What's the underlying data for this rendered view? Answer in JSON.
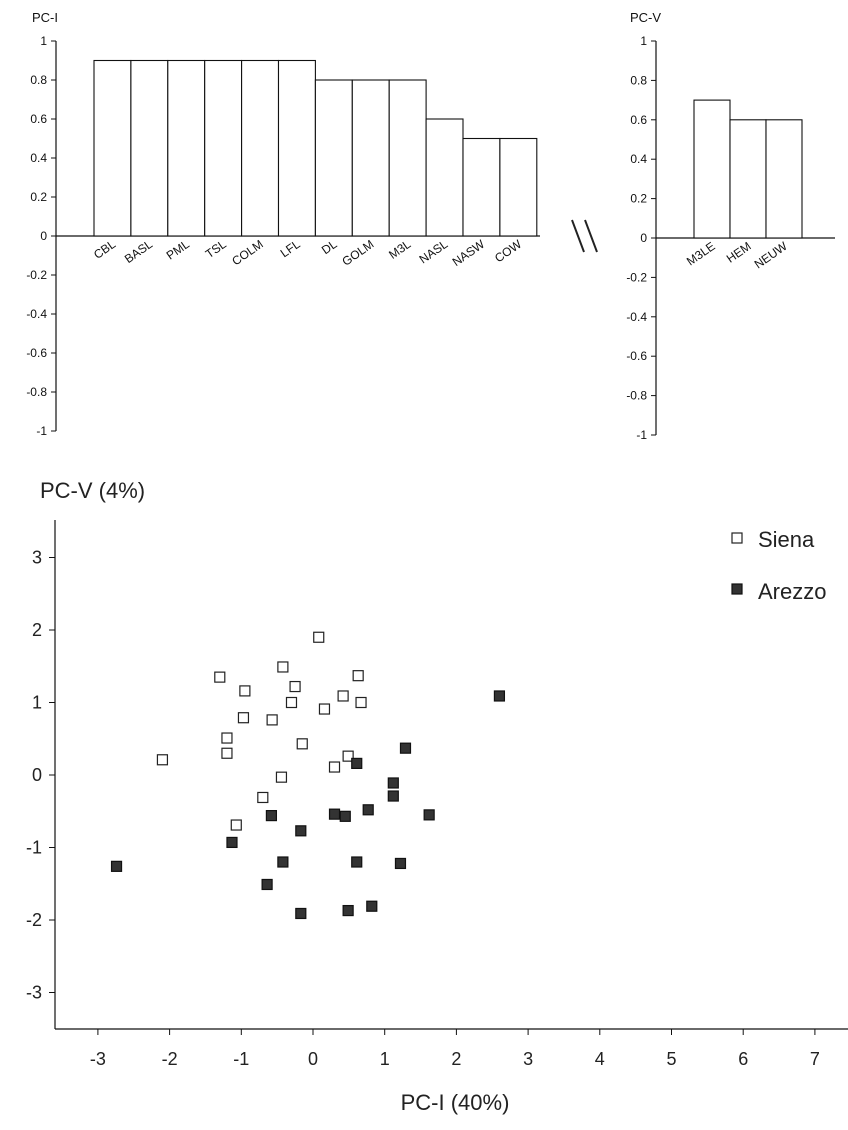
{
  "chart_data": [
    {
      "type": "bar",
      "title": "PC-I",
      "ylim": [
        -1,
        1
      ],
      "yticks": [
        "1",
        "0.8",
        "0.6",
        "0.4",
        "0.2",
        "0",
        "-0.2",
        "-0.4",
        "-0.6",
        "-0.8",
        "-1"
      ],
      "categories": [
        "CBL",
        "BASL",
        "PML",
        "TSL",
        "COLM",
        "LFL",
        "DL",
        "GOLM",
        "M3L",
        "NASL",
        "NASW",
        "COW"
      ],
      "values": [
        0.9,
        0.9,
        0.9,
        0.9,
        0.9,
        0.9,
        0.8,
        0.8,
        0.8,
        0.6,
        0.5,
        0.5
      ]
    },
    {
      "type": "bar",
      "title": "PC-V",
      "ylim": [
        -1,
        1
      ],
      "yticks": [
        "1",
        "0.8",
        "0.6",
        "0.4",
        "0.2",
        "0",
        "-0.2",
        "-0.4",
        "-0.6",
        "-0.8",
        "-1"
      ],
      "categories": [
        "M3LE",
        "HEM",
        "NEUW"
      ],
      "values": [
        0.7,
        0.6,
        0.6
      ]
    },
    {
      "type": "scatter",
      "xlabel": "PC-I (40%)",
      "ylabel": "PC-V (4%)",
      "xlim": [
        -3.5,
        7.5
      ],
      "ylim": [
        -3.5,
        3.5
      ],
      "xticks": [
        "-3",
        "-2",
        "-1",
        "0",
        "1",
        "2",
        "3",
        "4",
        "5",
        "6",
        "7"
      ],
      "yticks": [
        "3",
        "2",
        "1",
        "0",
        "-1",
        "-2",
        "-3"
      ],
      "legend_position": "top-right",
      "series": [
        {
          "name": "Siena",
          "marker": "open-square",
          "points": [
            [
              0.08,
              1.9
            ],
            [
              0.63,
              1.37
            ],
            [
              -0.42,
              1.49
            ],
            [
              -1.3,
              1.35
            ],
            [
              -0.25,
              1.22
            ],
            [
              -0.95,
              1.16
            ],
            [
              0.42,
              1.09
            ],
            [
              0.67,
              1.0
            ],
            [
              -0.3,
              1.0
            ],
            [
              0.16,
              0.91
            ],
            [
              -0.97,
              0.79
            ],
            [
              -0.57,
              0.76
            ],
            [
              -1.2,
              0.51
            ],
            [
              -0.15,
              0.43
            ],
            [
              -1.2,
              0.3
            ],
            [
              0.49,
              0.26
            ],
            [
              0.3,
              0.11
            ],
            [
              -2.1,
              0.21
            ],
            [
              -0.44,
              -0.03
            ],
            [
              -0.7,
              -0.31
            ],
            [
              -1.07,
              -0.69
            ]
          ]
        },
        {
          "name": "Arezzo",
          "marker": "filled-square",
          "points": [
            [
              2.6,
              1.09
            ],
            [
              1.29,
              0.37
            ],
            [
              0.61,
              0.16
            ],
            [
              1.12,
              -0.11
            ],
            [
              1.12,
              -0.29
            ],
            [
              0.77,
              -0.48
            ],
            [
              1.62,
              -0.55
            ],
            [
              0.3,
              -0.54
            ],
            [
              0.45,
              -0.57
            ],
            [
              -0.58,
              -0.56
            ],
            [
              -0.17,
              -0.77
            ],
            [
              -1.13,
              -0.93
            ],
            [
              -0.42,
              -1.2
            ],
            [
              0.61,
              -1.2
            ],
            [
              1.22,
              -1.22
            ],
            [
              -2.74,
              -1.26
            ],
            [
              -0.64,
              -1.51
            ],
            [
              0.82,
              -1.81
            ],
            [
              0.49,
              -1.87
            ],
            [
              -0.17,
              -1.91
            ]
          ]
        }
      ]
    }
  ]
}
